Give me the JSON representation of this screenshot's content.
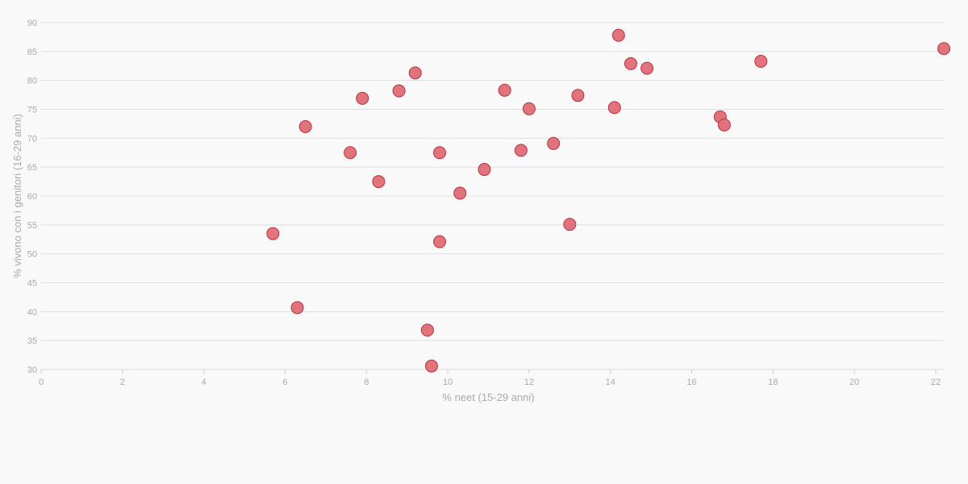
{
  "chart_data": {
    "type": "scatter",
    "xlabel": "% neet (15-29 anni)",
    "ylabel": "% vivono con i genitori (16-29 anni)",
    "xlim": [
      0,
      22.2
    ],
    "ylim": [
      30,
      90
    ],
    "x_ticks": [
      0,
      2,
      4,
      6,
      8,
      10,
      12,
      14,
      16,
      18,
      20,
      22
    ],
    "y_ticks": [
      30,
      35,
      40,
      45,
      50,
      55,
      60,
      65,
      70,
      75,
      80,
      85,
      90
    ],
    "grid": "horizontal",
    "legend": "none",
    "color": "#e0737c",
    "stroke_color": "#b9323f",
    "points": [
      {
        "x": 5.7,
        "y": 53.5
      },
      {
        "x": 6.3,
        "y": 40.7
      },
      {
        "x": 6.5,
        "y": 72.0
      },
      {
        "x": 7.6,
        "y": 67.5
      },
      {
        "x": 7.9,
        "y": 76.9
      },
      {
        "x": 8.3,
        "y": 62.5
      },
      {
        "x": 8.8,
        "y": 78.2
      },
      {
        "x": 9.2,
        "y": 81.3
      },
      {
        "x": 9.5,
        "y": 36.8
      },
      {
        "x": 9.6,
        "y": 30.6
      },
      {
        "x": 9.8,
        "y": 67.5
      },
      {
        "x": 9.8,
        "y": 52.1
      },
      {
        "x": 10.3,
        "y": 60.5
      },
      {
        "x": 10.9,
        "y": 64.6
      },
      {
        "x": 11.4,
        "y": 78.3
      },
      {
        "x": 11.8,
        "y": 67.9
      },
      {
        "x": 12.0,
        "y": 75.1
      },
      {
        "x": 12.6,
        "y": 69.1
      },
      {
        "x": 13.0,
        "y": 55.1
      },
      {
        "x": 13.2,
        "y": 77.4
      },
      {
        "x": 14.1,
        "y": 75.3
      },
      {
        "x": 14.2,
        "y": 87.8
      },
      {
        "x": 14.5,
        "y": 82.9
      },
      {
        "x": 14.9,
        "y": 82.1
      },
      {
        "x": 16.7,
        "y": 73.7
      },
      {
        "x": 16.8,
        "y": 72.3
      },
      {
        "x": 17.7,
        "y": 83.3
      },
      {
        "x": 22.2,
        "y": 85.5
      }
    ]
  }
}
